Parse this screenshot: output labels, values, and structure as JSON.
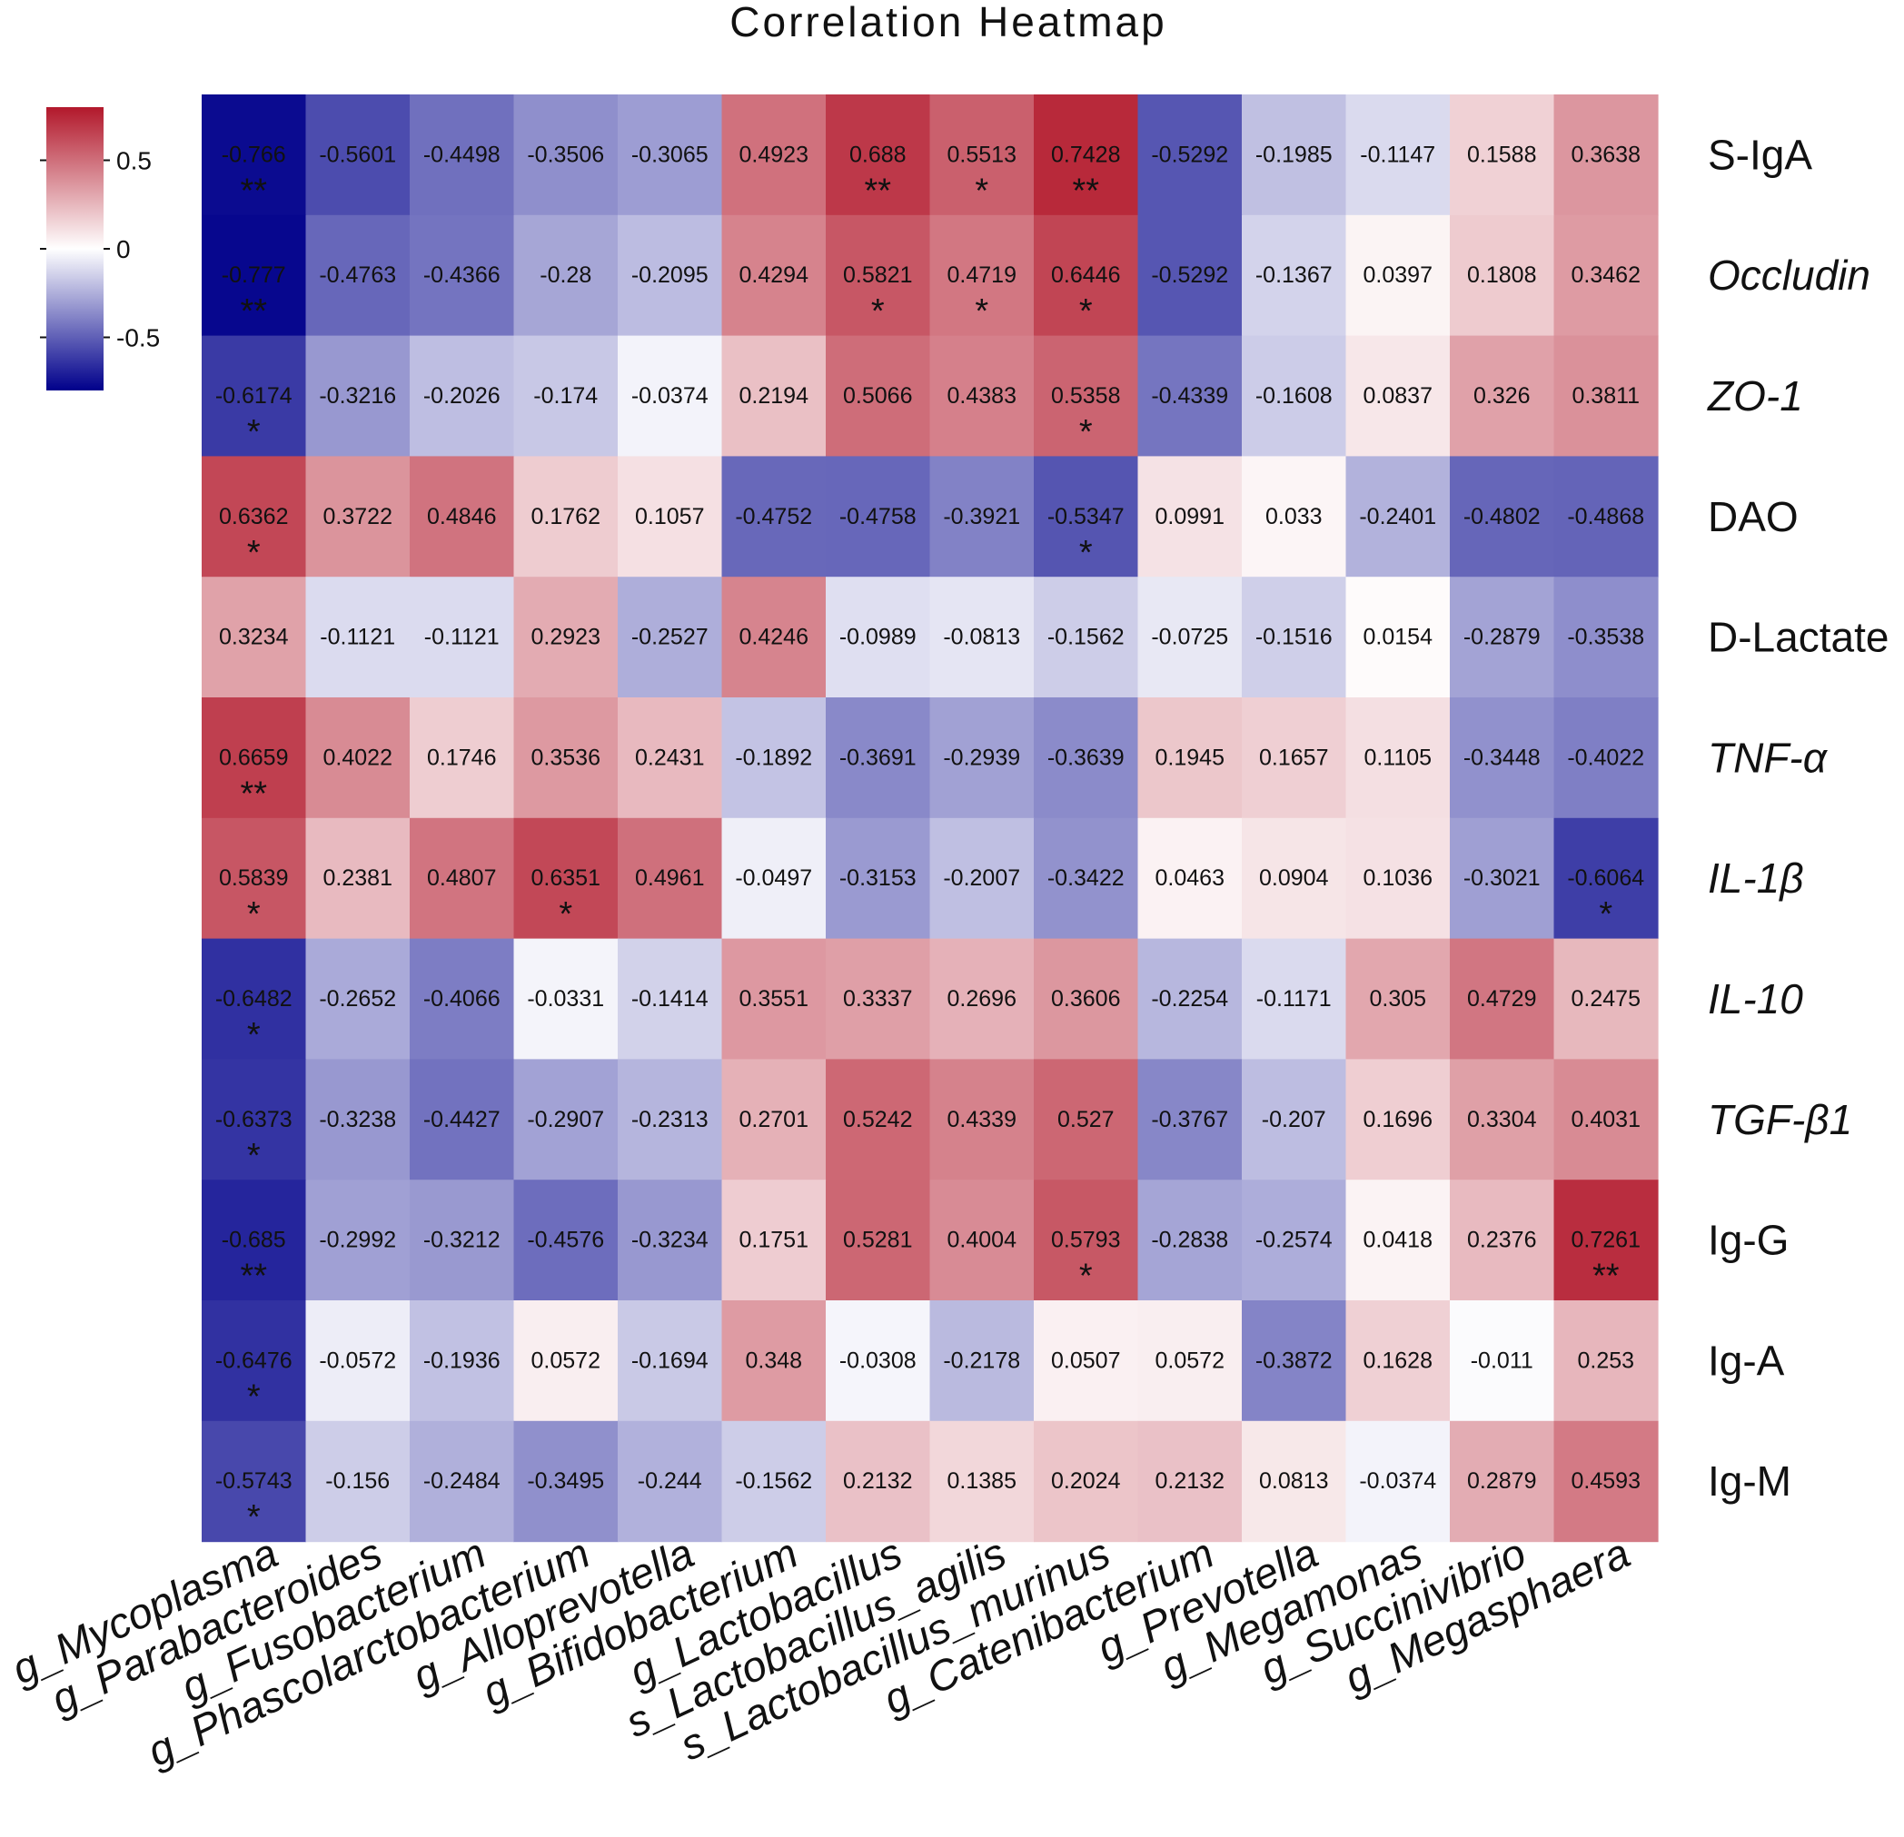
{
  "chart_data": {
    "type": "heatmap",
    "title": "Correlation Heatmap",
    "columns": [
      "g_Mycoplasma",
      "g_Parabacteroides",
      "g_Fusobacterium",
      "g_Phascolarctobacterium",
      "g_Alloprevotella",
      "g_Bifidobacterium",
      "g_Lactobacillus",
      "s_Lactobacillus_agilis",
      "s_Lactobacillus_murinus",
      "g_Catenibacterium",
      "g_Prevotella",
      "g_Megamonas",
      "g_Succinivibrio",
      "g_Megasphaera"
    ],
    "rows": [
      {
        "label": "S-IgA",
        "italic": false
      },
      {
        "label": "Occludin",
        "italic": true
      },
      {
        "label": "ZO-1",
        "italic": true
      },
      {
        "label": "DAO",
        "italic": false
      },
      {
        "label": "D-Lactate",
        "italic": false
      },
      {
        "label": "TNF-α",
        "italic": true
      },
      {
        "label": "IL-1β",
        "italic": true
      },
      {
        "label": "IL-10",
        "italic": true
      },
      {
        "label": "TGF-β1",
        "italic": true
      },
      {
        "label": "Ig-G",
        "italic": false
      },
      {
        "label": "Ig-A",
        "italic": false
      },
      {
        "label": "Ig-M",
        "italic": false
      }
    ],
    "values": [
      [
        "-0.766",
        "-0.5601",
        "-0.4498",
        "-0.3506",
        "-0.3065",
        "0.4923",
        "0.688",
        "0.5513",
        "0.7428",
        "-0.5292",
        "-0.1985",
        "-0.1147",
        "0.1588",
        "0.3638"
      ],
      [
        "-0.777",
        "-0.4763",
        "-0.4366",
        "-0.28",
        "-0.2095",
        "0.4294",
        "0.5821",
        "0.4719",
        "0.6446",
        "-0.5292",
        "-0.1367",
        "0.0397",
        "0.1808",
        "0.3462"
      ],
      [
        "-0.6174",
        "-0.3216",
        "-0.2026",
        "-0.174",
        "-0.0374",
        "0.2194",
        "0.5066",
        "0.4383",
        "0.5358",
        "-0.4339",
        "-0.1608",
        "0.0837",
        "0.326",
        "0.3811"
      ],
      [
        "0.6362",
        "0.3722",
        "0.4846",
        "0.1762",
        "0.1057",
        "-0.4752",
        "-0.4758",
        "-0.3921",
        "-0.5347",
        "0.0991",
        "0.033",
        "-0.2401",
        "-0.4802",
        "-0.4868"
      ],
      [
        "0.3234",
        "-0.1121",
        "-0.1121",
        "0.2923",
        "-0.2527",
        "0.4246",
        "-0.0989",
        "-0.0813",
        "-0.1562",
        "-0.0725",
        "-0.1516",
        "0.0154",
        "-0.2879",
        "-0.3538"
      ],
      [
        "0.6659",
        "0.4022",
        "0.1746",
        "0.3536",
        "0.2431",
        "-0.1892",
        "-0.3691",
        "-0.2939",
        "-0.3639",
        "0.1945",
        "0.1657",
        "0.1105",
        "-0.3448",
        "-0.4022"
      ],
      [
        "0.5839",
        "0.2381",
        "0.4807",
        "0.6351",
        "0.4961",
        "-0.0497",
        "-0.3153",
        "-0.2007",
        "-0.3422",
        "0.0463",
        "0.0904",
        "0.1036",
        "-0.3021",
        "-0.6064"
      ],
      [
        "-0.6482",
        "-0.2652",
        "-0.4066",
        "-0.0331",
        "-0.1414",
        "0.3551",
        "0.3337",
        "0.2696",
        "0.3606",
        "-0.2254",
        "-0.1171",
        "0.305",
        "0.4729",
        "0.2475"
      ],
      [
        "-0.6373",
        "-0.3238",
        "-0.4427",
        "-0.2907",
        "-0.2313",
        "0.2701",
        "0.5242",
        "0.4339",
        "0.527",
        "-0.3767",
        "-0.207",
        "0.1696",
        "0.3304",
        "0.4031"
      ],
      [
        "-0.685",
        "-0.2992",
        "-0.3212",
        "-0.4576",
        "-0.3234",
        "0.1751",
        "0.5281",
        "0.4004",
        "0.5793",
        "-0.2838",
        "-0.2574",
        "0.0418",
        "0.2376",
        "0.7261"
      ],
      [
        "-0.6476",
        "-0.0572",
        "-0.1936",
        "0.0572",
        "-0.1694",
        "0.348",
        "-0.0308",
        "-0.2178",
        "0.0507",
        "0.0572",
        "-0.3872",
        "0.1628",
        "-0.011",
        "0.253"
      ],
      [
        "-0.5743",
        "-0.156",
        "-0.2484",
        "-0.3495",
        "-0.244",
        "-0.1562",
        "0.2132",
        "0.1385",
        "0.2024",
        "0.2132",
        "0.0813",
        "-0.0374",
        "0.2879",
        "0.4593"
      ]
    ],
    "significance": [
      [
        "**",
        "",
        "",
        "",
        "",
        "",
        "**",
        "*",
        "**",
        "",
        "",
        "",
        "",
        ""
      ],
      [
        "**",
        "",
        "",
        "",
        "",
        "",
        "*",
        "*",
        "*",
        "",
        "",
        "",
        "",
        ""
      ],
      [
        "*",
        "",
        "",
        "",
        "",
        "",
        "",
        "",
        "*",
        "",
        "",
        "",
        "",
        ""
      ],
      [
        "*",
        "",
        "",
        "",
        "",
        "",
        "",
        "",
        "*",
        "",
        "",
        "",
        "",
        ""
      ],
      [
        "",
        "",
        "",
        "",
        "",
        "",
        "",
        "",
        "",
        "",
        "",
        "",
        "",
        ""
      ],
      [
        "**",
        "",
        "",
        "",
        "",
        "",
        "",
        "",
        "",
        "",
        "",
        "",
        "",
        ""
      ],
      [
        "*",
        "",
        "",
        "*",
        "",
        "",
        "",
        "",
        "",
        "",
        "",
        "",
        "",
        "*"
      ],
      [
        "*",
        "",
        "",
        "",
        "",
        "",
        "",
        "",
        "",
        "",
        "",
        "",
        "",
        ""
      ],
      [
        "*",
        "",
        "",
        "",
        "",
        "",
        "",
        "",
        "",
        "",
        "",
        "",
        "",
        ""
      ],
      [
        "**",
        "",
        "",
        "",
        "",
        "",
        "",
        "",
        "*",
        "",
        "",
        "",
        "",
        "**"
      ],
      [
        "*",
        "",
        "",
        "",
        "",
        "",
        "",
        "",
        "",
        "",
        "",
        "",
        "",
        ""
      ],
      [
        "*",
        "",
        "",
        "",
        "",
        "",
        "",
        "",
        "",
        "",
        "",
        "",
        "",
        ""
      ]
    ],
    "color_scale": {
      "min": -0.8,
      "max": 0.8,
      "ticks": [
        0.5,
        0,
        -0.5
      ],
      "tick_labels": [
        "0.5",
        "0",
        "-0.5"
      ],
      "low_color": "#00008b",
      "mid_color": "#ffffff",
      "high_color": "#b2182b"
    }
  }
}
